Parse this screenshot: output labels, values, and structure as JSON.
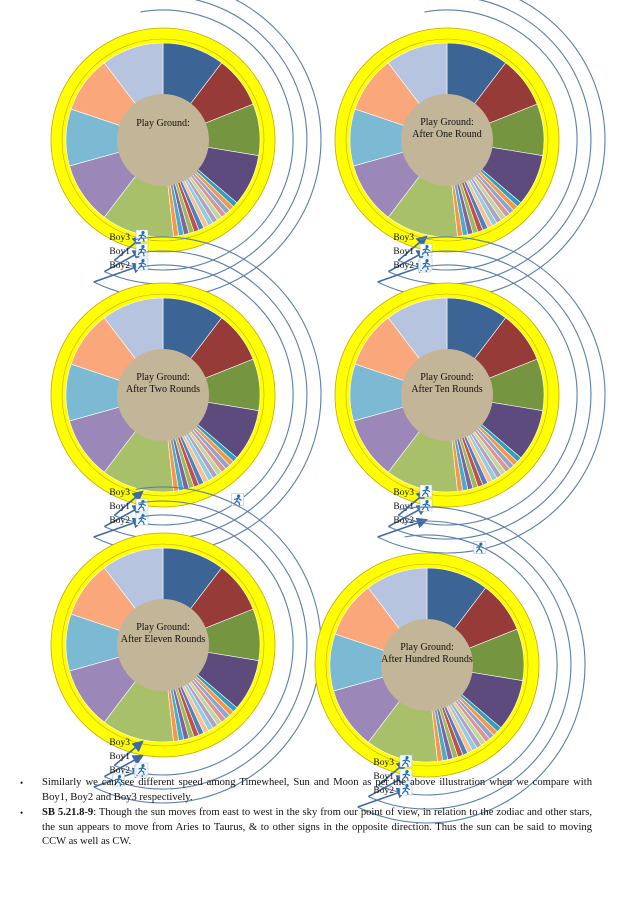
{
  "palette": {
    "ring": "#ffff00",
    "ring_edge": "#c9a600",
    "hub": "#c3b597",
    "arc": "#5b7fa8",
    "arrow": "#3d6aa5",
    "runner": "#1f6fb5"
  },
  "wheel_segments": [
    {
      "color": "#3c6495",
      "value": 12
    },
    {
      "color": "#973b38",
      "value": 10
    },
    {
      "color": "#769541",
      "value": 10
    },
    {
      "color": "#5e4b7d",
      "value": 10
    },
    {
      "color": "#2e9fbd",
      "value": 1
    },
    {
      "color": "#f79646",
      "value": 1
    },
    {
      "color": "#8ea6cf",
      "value": 1
    },
    {
      "color": "#d99694",
      "value": 1
    },
    {
      "color": "#c3d69b",
      "value": 1
    },
    {
      "color": "#b2a1c7",
      "value": 1
    },
    {
      "color": "#93cddd",
      "value": 1
    },
    {
      "color": "#fac090",
      "value": 1
    },
    {
      "color": "#4f81bd",
      "value": 1
    },
    {
      "color": "#c0504d",
      "value": 1
    },
    {
      "color": "#9bbb59",
      "value": 1
    },
    {
      "color": "#8064a2",
      "value": 1
    },
    {
      "color": "#4bacc6",
      "value": 1
    },
    {
      "color": "#f79646",
      "value": 1
    },
    {
      "color": "#a9c06b",
      "value": 14
    },
    {
      "color": "#9b87b8",
      "value": 12
    },
    {
      "color": "#7cbad4",
      "value": 11
    },
    {
      "color": "#f9a77b",
      "value": 11
    },
    {
      "color": "#b7c4df",
      "value": 12
    }
  ],
  "panels": [
    {
      "title_line1": "Play Ground:",
      "title_line2": "",
      "labels": [
        "Boy3",
        "Boy1",
        "Boy2"
      ],
      "runners": [
        {
          "boy": "Boy3",
          "angle": 170
        },
        {
          "boy": "Boy1",
          "angle": 170
        },
        {
          "boy": "Boy2",
          "angle": 170
        }
      ]
    },
    {
      "title_line1": "Play Ground:",
      "title_line2": "After One Round",
      "labels": [
        "Boy3",
        "Boy1",
        "Boy2"
      ],
      "runners": [
        {
          "boy": "Boy3",
          "angle": 140
        },
        {
          "boy": "Boy1",
          "angle": 170
        },
        {
          "boy": "Boy2",
          "angle": 170
        }
      ]
    },
    {
      "title_line1": "Play Ground:",
      "title_line2": "After Two Rounds",
      "labels": [
        "Boy3",
        "Boy1",
        "Boy2"
      ],
      "runners": [
        {
          "boy": "Boy3",
          "angle": 95
        },
        {
          "boy": "Boy1",
          "angle": 170
        },
        {
          "boy": "Boy2",
          "angle": 170
        }
      ]
    },
    {
      "title_line1": "Play Ground:",
      "title_line2": "After Ten Rounds",
      "labels": [
        "Boy3",
        "Boy1",
        "Boy2"
      ],
      "runners": [
        {
          "boy": "Boy3",
          "angle": 170
        },
        {
          "boy": "Boy1",
          "angle": 168
        },
        {
          "boy": "Boy2",
          "angle": 118
        }
      ]
    },
    {
      "title_line1": "Play Ground:",
      "title_line2": "After Eleven Rounds",
      "labels": [
        "Boy3",
        "Boy1",
        "Boy2"
      ],
      "runners": [
        {
          "boy": "Boy3",
          "angle": 140
        },
        {
          "boy": "Boy1",
          "angle": 148
        },
        {
          "boy": "Boy2",
          "angle": 170
        }
      ]
    },
    {
      "title_line1": "Play Ground:",
      "title_line2": "After Hundred Rounds",
      "labels": [
        "Boy3",
        "Boy1",
        "Boy2"
      ],
      "runners": [
        {
          "boy": "Boy3",
          "angle": 170
        },
        {
          "boy": "Boy1",
          "angle": 170
        },
        {
          "boy": "Boy2",
          "angle": 170
        }
      ]
    }
  ],
  "notes": [
    {
      "bullet": "•",
      "bold": "",
      "text": "Similarly we can see different speed among Timewheel, Sun and Moon as per the above illustration when we compare with Boy1, Boy2 and Boy3 respectively."
    },
    {
      "bullet": "•",
      "bold": "SB 5.21.8-9",
      "text": ": Though the sun moves from east to west in the sky from our point of view, in relation to the zodiac and other stars, the sun appears to move from Aries to Taurus, & to other signs in the opposite direction. Thus the sun can be said to moving CCW as well as CW."
    }
  ]
}
